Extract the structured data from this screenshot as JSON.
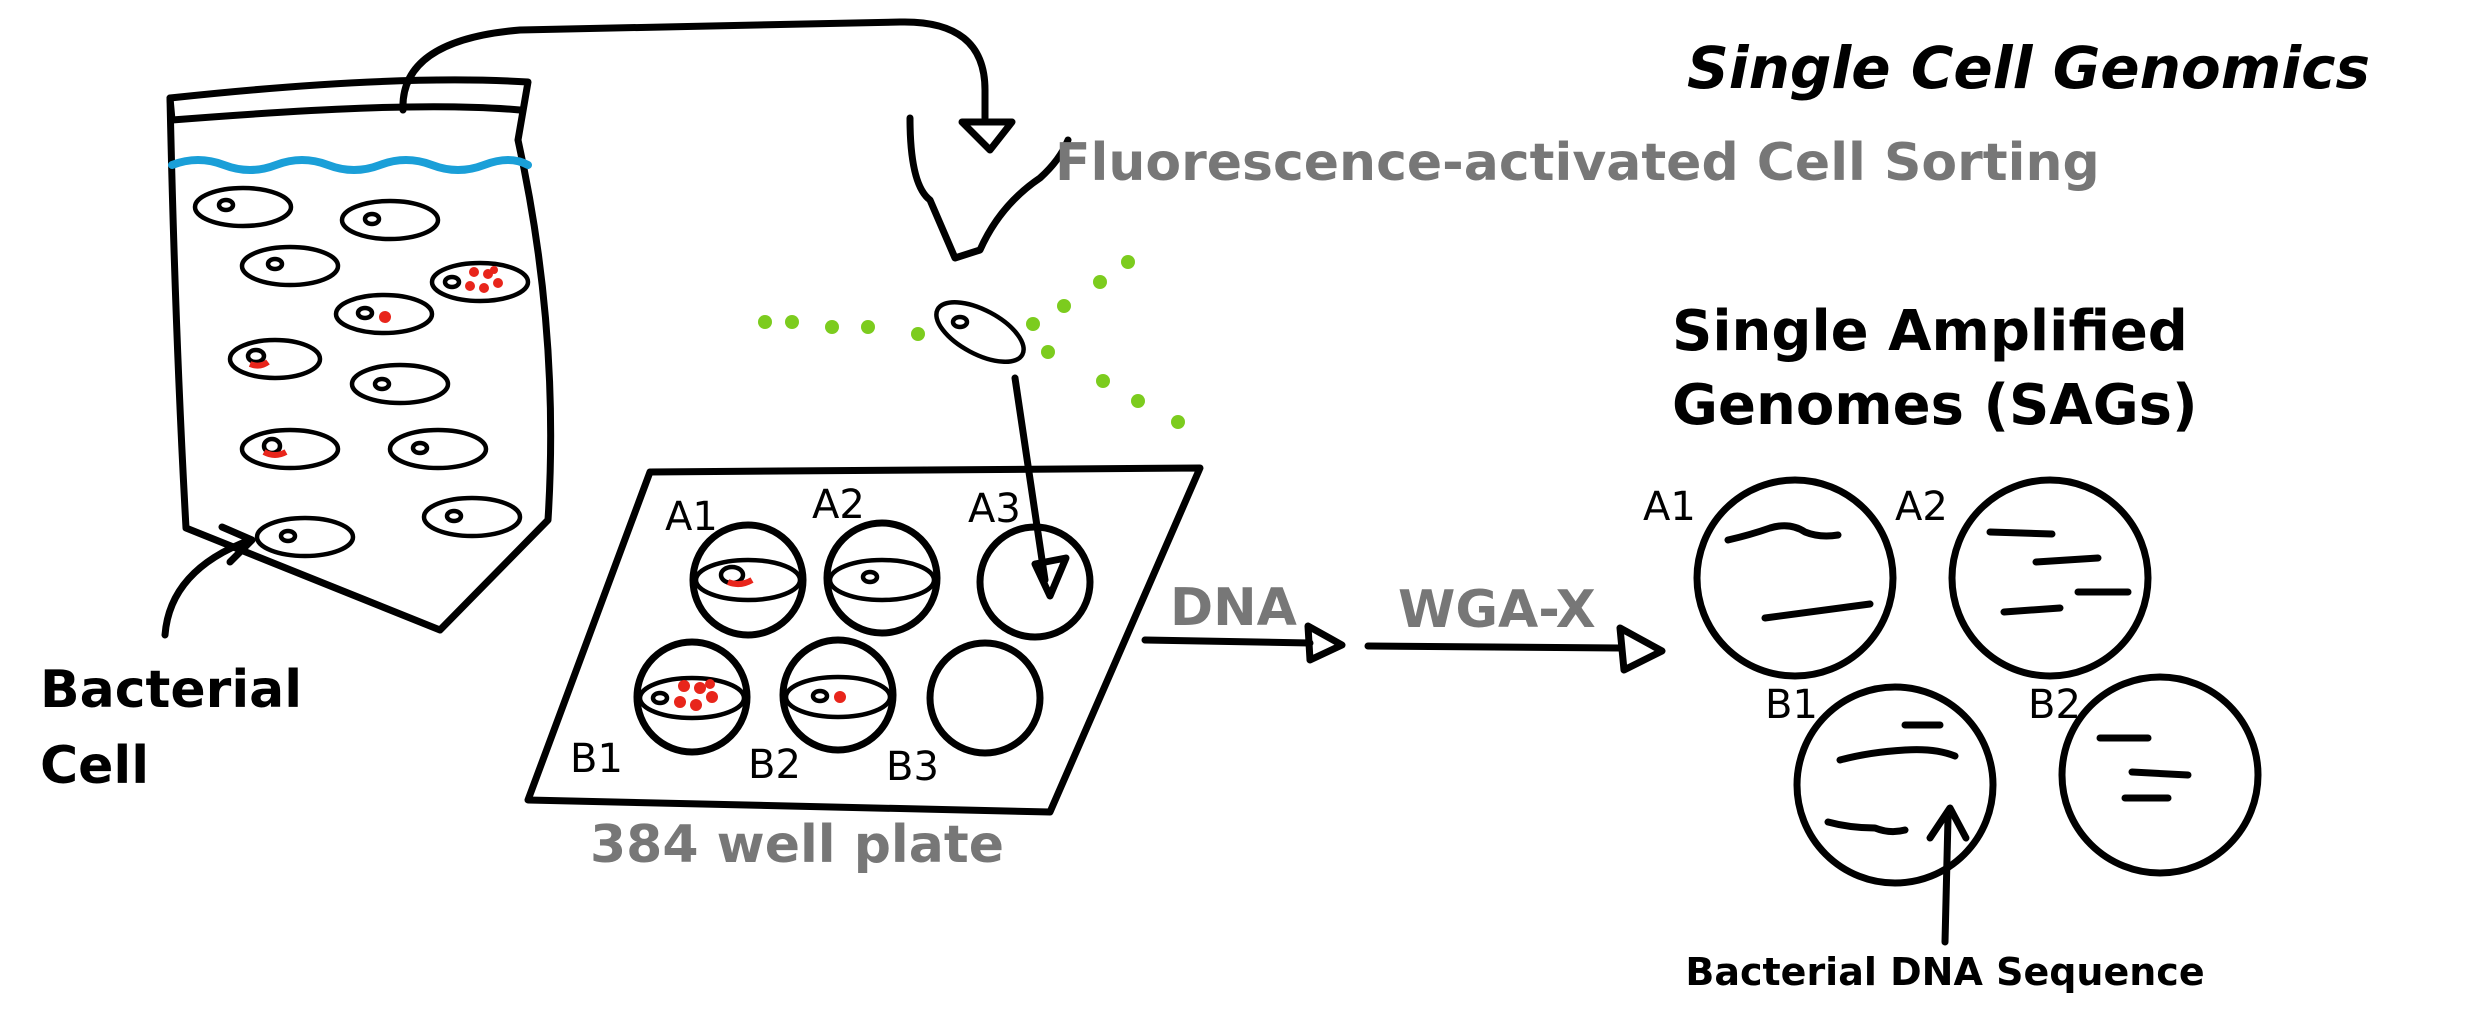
{
  "title": "Single Cell Genomics",
  "facs_label": "Fluorescence-activated Cell Sorting",
  "bacterial_cell_label_line1": "Bacterial",
  "bacterial_cell_label_line2": "Cell",
  "plate": {
    "caption": "384 well plate",
    "wells": [
      "A1",
      "A2",
      "A3",
      "B1",
      "B2",
      "B3"
    ]
  },
  "step_dna": "DNA",
  "step_wga": "WGA-X",
  "sags_title_line1": "Single Amplified",
  "sags_title_line2": "Genomes (SAGs)",
  "sags": [
    "A1",
    "A2",
    "B1",
    "B2"
  ],
  "dna_sequence_label": "Bacterial DNA Sequence",
  "colors": {
    "ink": "#000000",
    "gray_text": "#777777",
    "water": "#1a9fd8",
    "dna": "#e8251b",
    "laser": "#7ccc1e"
  }
}
